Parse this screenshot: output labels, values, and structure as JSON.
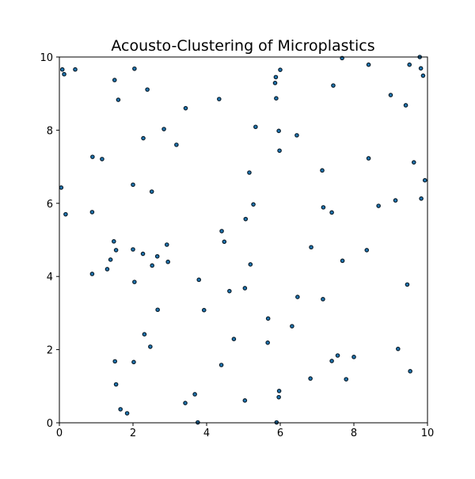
{
  "chart_data": {
    "type": "scatter",
    "title": "Acousto-Clustering of Microplastics",
    "xlabel": "",
    "ylabel": "",
    "xlim": [
      0,
      10
    ],
    "ylim": [
      0,
      10
    ],
    "xticks": [
      0,
      2,
      4,
      6,
      8,
      10
    ],
    "yticks": [
      0,
      2,
      4,
      6,
      8,
      10
    ],
    "xtick_labels": [
      "0",
      "2",
      "4",
      "6",
      "8",
      "10"
    ],
    "ytick_labels": [
      "0",
      "2",
      "4",
      "6",
      "8",
      "10"
    ],
    "grid": false,
    "marker_color": "#1f77b4",
    "marker_edge_color": "#0c1e2c",
    "series": [
      {
        "points": [
          [
            0.08,
            9.66
          ],
          [
            0.13,
            9.53
          ],
          [
            0.43,
            9.66
          ],
          [
            0.05,
            6.43
          ],
          [
            0.17,
            5.7
          ],
          [
            1.5,
            9.37
          ],
          [
            2.04,
            9.68
          ],
          [
            1.6,
            8.83
          ],
          [
            2.39,
            9.11
          ],
          [
            0.9,
            7.27
          ],
          [
            1.16,
            7.21
          ],
          [
            2.28,
            7.78
          ],
          [
            2.84,
            8.03
          ],
          [
            3.18,
            7.6
          ],
          [
            3.43,
            8.6
          ],
          [
            4.34,
            8.85
          ],
          [
            2.0,
            6.51
          ],
          [
            2.51,
            6.32
          ],
          [
            0.89,
            5.76
          ],
          [
            1.48,
            4.96
          ],
          [
            1.54,
            4.72
          ],
          [
            2.0,
            4.74
          ],
          [
            1.39,
            4.46
          ],
          [
            1.3,
            4.2
          ],
          [
            0.89,
            4.07
          ],
          [
            2.27,
            4.62
          ],
          [
            2.66,
            4.55
          ],
          [
            2.92,
            4.87
          ],
          [
            2.52,
            4.3
          ],
          [
            2.95,
            4.4
          ],
          [
            2.04,
            3.85
          ],
          [
            2.67,
            3.09
          ],
          [
            2.31,
            2.42
          ],
          [
            2.47,
            2.08
          ],
          [
            1.51,
            1.68
          ],
          [
            2.02,
            1.66
          ],
          [
            1.54,
            1.05
          ],
          [
            1.66,
            0.37
          ],
          [
            1.84,
            0.26
          ],
          [
            3.42,
            0.54
          ],
          [
            3.68,
            0.78
          ],
          [
            3.76,
            0.01
          ],
          [
            3.79,
            3.91
          ],
          [
            3.93,
            3.08
          ],
          [
            4.41,
            5.24
          ],
          [
            4.48,
            4.95
          ],
          [
            4.62,
            3.6
          ],
          [
            4.74,
            2.29
          ],
          [
            4.4,
            1.58
          ],
          [
            5.04,
            0.61
          ],
          [
            5.04,
            3.68
          ],
          [
            5.06,
            5.57
          ],
          [
            5.16,
            6.84
          ],
          [
            5.27,
            5.97
          ],
          [
            5.19,
            4.33
          ],
          [
            5.33,
            8.09
          ],
          [
            5.67,
            2.85
          ],
          [
            5.66,
            2.19
          ],
          [
            5.86,
            9.29
          ],
          [
            5.88,
            9.45
          ],
          [
            6.0,
            9.65
          ],
          [
            5.89,
            8.87
          ],
          [
            5.96,
            7.98
          ],
          [
            5.98,
            7.44
          ],
          [
            5.9,
            0.01
          ],
          [
            5.97,
            0.87
          ],
          [
            5.96,
            0.7
          ],
          [
            6.32,
            2.64
          ],
          [
            6.47,
            3.44
          ],
          [
            6.45,
            7.86
          ],
          [
            6.82,
            1.21
          ],
          [
            6.84,
            4.8
          ],
          [
            7.14,
            6.9
          ],
          [
            7.17,
            5.89
          ],
          [
            7.16,
            3.38
          ],
          [
            7.4,
            5.75
          ],
          [
            7.44,
            9.22
          ],
          [
            7.4,
            1.69
          ],
          [
            7.56,
            1.84
          ],
          [
            7.68,
            9.97
          ],
          [
            7.69,
            4.43
          ],
          [
            7.79,
            1.19
          ],
          [
            8.0,
            1.8
          ],
          [
            8.35,
            4.72
          ],
          [
            8.4,
            9.79
          ],
          [
            8.4,
            7.23
          ],
          [
            8.67,
            5.93
          ],
          [
            9.0,
            8.96
          ],
          [
            9.13,
            6.08
          ],
          [
            9.2,
            2.02
          ],
          [
            9.41,
            8.68
          ],
          [
            9.45,
            3.78
          ],
          [
            9.51,
            9.79
          ],
          [
            9.53,
            1.41
          ],
          [
            9.63,
            7.12
          ],
          [
            9.79,
            10.0
          ],
          [
            9.82,
            9.69
          ],
          [
            9.88,
            9.49
          ],
          [
            9.83,
            6.13
          ],
          [
            9.93,
            6.63
          ]
        ]
      }
    ]
  }
}
